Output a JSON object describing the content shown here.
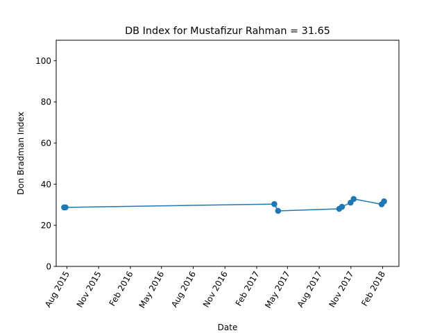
{
  "chart_data": {
    "type": "line",
    "title": "DB Index for Mustafizur Rahman = 31.65",
    "xlabel": "Date",
    "ylabel": "Don Bradman Index",
    "ylim": [
      0,
      110
    ],
    "xlim": [
      "2015-07-01",
      "2018-03-20"
    ],
    "yticks": [
      0,
      20,
      40,
      60,
      80,
      100
    ],
    "xticks": [
      {
        "date": "2015-08-01",
        "label": "Aug 2015"
      },
      {
        "date": "2015-11-01",
        "label": "Nov 2015"
      },
      {
        "date": "2016-02-01",
        "label": "Feb 2016"
      },
      {
        "date": "2016-05-01",
        "label": "May 2016"
      },
      {
        "date": "2016-08-01",
        "label": "Aug 2016"
      },
      {
        "date": "2016-11-01",
        "label": "Nov 2016"
      },
      {
        "date": "2017-02-01",
        "label": "Feb 2017"
      },
      {
        "date": "2017-05-01",
        "label": "May 2017"
      },
      {
        "date": "2017-08-01",
        "label": "Aug 2017"
      },
      {
        "date": "2017-11-01",
        "label": "Nov 2017"
      },
      {
        "date": "2018-02-01",
        "label": "Feb 2018"
      }
    ],
    "grid": false,
    "series": [
      {
        "color": "#1f77b4",
        "marker": "circle",
        "x": [
          "2015-07-24",
          "2015-07-28",
          "2017-03-24",
          "2017-04-04",
          "2017-09-28",
          "2017-10-06",
          "2017-10-31",
          "2017-11-09",
          "2018-01-29",
          "2018-02-05"
        ],
        "y": [
          28.7,
          28.7,
          30.3,
          27.0,
          28.0,
          29.0,
          31.0,
          32.8,
          30.2,
          31.65
        ]
      }
    ]
  }
}
